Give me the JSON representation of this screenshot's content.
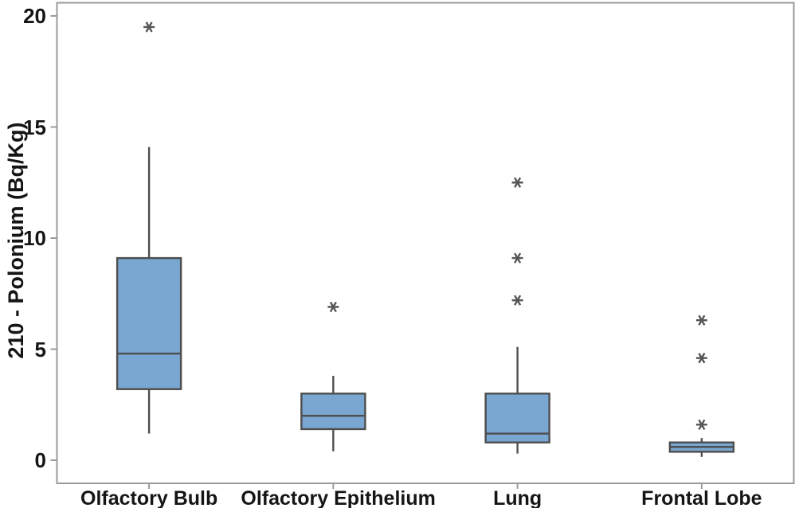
{
  "figure": {
    "background": "#ffffff",
    "frame_color": "#9A9A9A",
    "text_color": "#151515"
  },
  "chart_data": {
    "type": "boxplot",
    "title": "",
    "xlabel": "",
    "ylabel": "210 - Polonium (Bq/Kg)",
    "ylim": [
      0,
      20
    ],
    "yticks": [
      "0",
      "5",
      "10",
      "15",
      "20"
    ],
    "ytick_values": [
      0,
      5,
      10,
      15,
      20
    ],
    "grid": "off",
    "legend": "none",
    "box_fill": "#7AA6D2",
    "box_stroke": "#4E4E4E",
    "whisker_color": "#4E4E4E",
    "outlier_color": "#565656",
    "outlier_marker": "asterisk",
    "categories": [
      "Olfactory Bulb",
      "Olfactory Epithelium",
      "Lung",
      "Frontal Lobe"
    ],
    "series": [
      {
        "category": "Olfactory Bulb",
        "whisker_low": 1.2,
        "q1": 3.2,
        "median": 4.8,
        "q3": 9.1,
        "whisker_high": 14.1,
        "outliers": [
          19.5
        ]
      },
      {
        "category": "Olfactory Epithelium",
        "whisker_low": 0.4,
        "q1": 1.4,
        "median": 2.0,
        "q3": 3.0,
        "whisker_high": 3.8,
        "outliers": [
          6.9
        ]
      },
      {
        "category": "Lung",
        "whisker_low": 0.3,
        "q1": 0.8,
        "median": 1.2,
        "q3": 3.0,
        "whisker_high": 5.1,
        "outliers": [
          7.2,
          9.1,
          12.5
        ]
      },
      {
        "category": "Frontal Lobe",
        "whisker_low": 0.15,
        "q1": 0.38,
        "median": 0.6,
        "q3": 0.8,
        "whisker_high": 1.0,
        "outliers": [
          1.6,
          4.6,
          6.3
        ]
      }
    ]
  }
}
